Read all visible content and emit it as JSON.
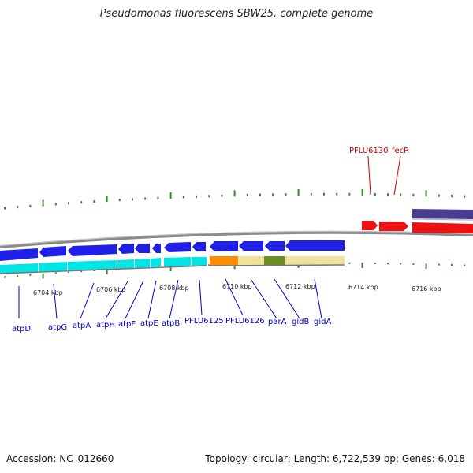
{
  "title": "Pseudomonas fluorescens SBW25, complete genome",
  "footer": {
    "accession": "Accession: NC_012660",
    "topology": "Topology: circular; Length: 6,722,539 bp; Genes: 6,018"
  },
  "colors": {
    "backbone": "#888888",
    "tick": "#2e8b22",
    "gene_blue": "#1f1fe8",
    "cds_cyan": "#00e5e5",
    "gene_red": "#ee1111",
    "gene_purple": "#4a3d8f",
    "orange": "#ff8c00",
    "khaki": "#efe29a",
    "olive": "#6b8e23",
    "label_blue": "#0000cc",
    "label_red": "#cc0000"
  },
  "scale_labels": [
    "6704 kbp",
    "6706 kbp",
    "6708 kbp",
    "6710 kbp",
    "6712 kbp",
    "6714 kbp",
    "6716 kbp"
  ],
  "gene_labels_bottom": [
    "atpD",
    "atpG",
    "atpA",
    "atpH",
    "atpF",
    "atpE",
    "atpB",
    "PFLU6125",
    "PFLU6126",
    "parA",
    "gidB",
    "gidA"
  ],
  "gene_labels_top": [
    "PFLU6130",
    "fecR"
  ]
}
